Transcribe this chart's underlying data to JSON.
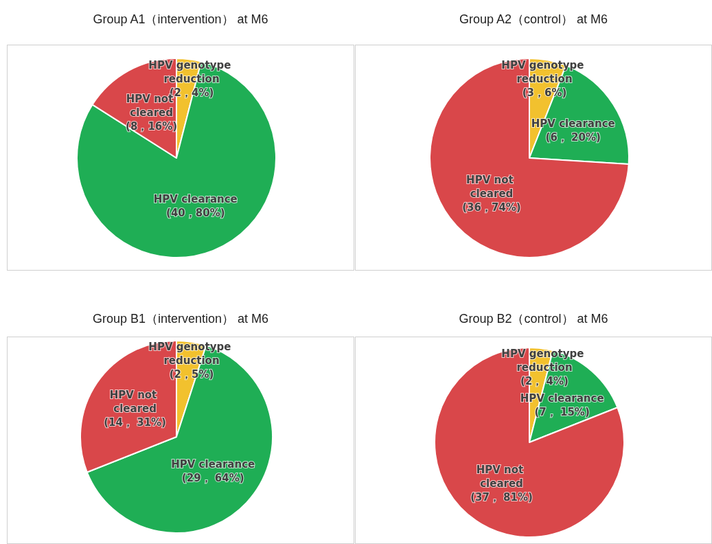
{
  "chart_data": [
    {
      "type": "pie",
      "title": "Group A1（intervention） at M6",
      "categories": [
        "HPV genotype reduction",
        "HPV clearance",
        "HPV not cleared"
      ],
      "values": [
        4,
        80,
        16
      ],
      "value_labels": [
        "(2，4%)",
        "(40，80%)",
        "(8，16%)"
      ],
      "colors": [
        "#f2c12e",
        "#1fae55",
        "#d9474a"
      ]
    },
    {
      "type": "pie",
      "title": "Group A2（control） at M6",
      "categories": [
        "HPV genotype reduction",
        "HPV clearance",
        "HPV not cleared"
      ],
      "values": [
        6,
        20,
        74
      ],
      "value_labels": [
        "(3，6%)",
        "(6， 20%)",
        "(36，74%)"
      ],
      "colors": [
        "#f2c12e",
        "#1fae55",
        "#d9474a"
      ]
    },
    {
      "type": "pie",
      "title": "Group B1（intervention） at M6",
      "categories": [
        "HPV genotype reduction",
        "HPV clearance",
        "HPV not cleared"
      ],
      "values": [
        5,
        64,
        31
      ],
      "value_labels": [
        "(2，5%)",
        "(29， 64%)",
        "(14， 31%)"
      ],
      "colors": [
        "#f2c12e",
        "#1fae55",
        "#d9474a"
      ]
    },
    {
      "type": "pie",
      "title": "Group B2（control） at M6",
      "categories": [
        "HPV genotype reduction",
        "HPV clearance",
        "HPV not cleared"
      ],
      "values": [
        4,
        15,
        81
      ],
      "value_labels": [
        "(2， 4%)",
        "(7， 15%)",
        "(37， 81%)"
      ],
      "colors": [
        "#f2c12e",
        "#1fae55",
        "#d9474a"
      ]
    }
  ]
}
